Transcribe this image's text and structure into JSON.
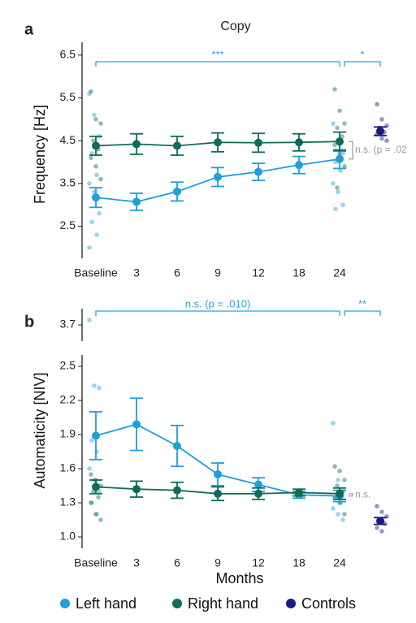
{
  "chart_data": [
    {
      "type": "line",
      "panel_label": "a",
      "title": "Copy",
      "y_label": "Frequency [Hz]",
      "categories": [
        "Baseline",
        "3",
        "6",
        "9",
        "12",
        "18",
        "24",
        null
      ],
      "ylim": [
        1.75,
        6.8
      ],
      "yticks": [
        2.5,
        3.5,
        4.5,
        5.5,
        6.5
      ],
      "annotations": [
        "***",
        "*",
        "n.s. (p = .02"
      ],
      "series": [
        {
          "name": "Left hand",
          "color": "#1f9fd9",
          "values": [
            3.17,
            3.07,
            3.31,
            3.65,
            3.77,
            3.93,
            4.07,
            null
          ],
          "errors": [
            0.23,
            0.2,
            0.22,
            0.22,
            0.2,
            0.2,
            0.22,
            null
          ],
          "raw": [
            [
              5.6,
              5.1,
              4.6,
              4.2,
              3.7,
              3.5,
              3.3,
              2.8,
              2.6,
              2.3,
              2.0
            ],
            null,
            null,
            null,
            null,
            null,
            [
              4.9,
              4.5,
              4.2,
              4.0,
              3.8,
              3.5,
              3.3,
              3.0,
              2.9
            ],
            null
          ]
        },
        {
          "name": "Right hand",
          "color": "#0f6b5a",
          "values": [
            4.38,
            4.42,
            4.38,
            4.46,
            4.45,
            4.46,
            4.48,
            null
          ],
          "errors": [
            0.22,
            0.24,
            0.22,
            0.22,
            0.22,
            0.2,
            0.22,
            null
          ],
          "raw": [
            [
              5.65,
              5.0,
              4.9,
              4.5,
              4.3,
              4.1,
              3.9,
              3.6
            ],
            null,
            null,
            null,
            null,
            null,
            [
              5.7,
              5.2,
              4.9,
              4.8,
              4.6,
              4.4,
              4.2,
              3.9,
              3.4
            ],
            null
          ]
        },
        {
          "name": "Controls",
          "color": "#1a1a80",
          "values": [
            null,
            null,
            null,
            null,
            null,
            null,
            null,
            4.72
          ],
          "errors": [
            null,
            null,
            null,
            null,
            null,
            null,
            null,
            0.1
          ],
          "raw": [
            null,
            null,
            null,
            null,
            null,
            null,
            null,
            [
              5.35,
              5.0,
              4.85,
              4.8,
              4.7,
              4.65,
              4.55,
              4.5
            ]
          ]
        }
      ]
    },
    {
      "type": "line",
      "panel_label": "b",
      "y_label": "Automaticity [NIV]",
      "x_label": "Months",
      "categories": [
        "Baseline",
        "3",
        "6",
        "9",
        "12",
        "18",
        "24",
        null
      ],
      "ylim": [
        0.9,
        2.6
      ],
      "yticks": [
        {
          "value": 1.0,
          "label": "1.0"
        },
        1.3,
        1.6,
        1.9,
        2.2,
        2.5
      ],
      "ylim_upper": [
        3.6,
        3.8
      ],
      "yticks_upper": [
        3.7
      ],
      "annotations": [
        "n.s. (p = .010)",
        "**",
        "n.s."
      ],
      "series": [
        {
          "name": "Left hand",
          "color": "#1f9fd9",
          "values": [
            1.89,
            1.99,
            1.8,
            1.55,
            1.46,
            1.37,
            1.36,
            null
          ],
          "errors": [
            0.21,
            0.23,
            0.18,
            0.1,
            0.06,
            0.03,
            0.05,
            null
          ],
          "raw": [
            [
              3.73,
              2.33,
              2.31,
              1.85,
              1.75,
              1.6,
              1.5,
              1.4,
              1.3,
              1.2
            ],
            null,
            null,
            null,
            null,
            null,
            [
              2.0,
              1.5,
              1.4,
              1.35,
              1.3,
              1.25,
              1.2,
              1.15
            ],
            null
          ]
        },
        {
          "name": "Right hand",
          "color": "#0f6b5a",
          "values": [
            1.44,
            1.42,
            1.41,
            1.38,
            1.38,
            1.39,
            1.38,
            null
          ],
          "errors": [
            0.06,
            0.07,
            0.07,
            0.06,
            0.05,
            0.03,
            0.05,
            null
          ],
          "raw": [
            [
              1.55,
              1.5,
              1.45,
              1.4,
              1.35,
              1.3,
              1.2,
              1.15
            ],
            null,
            null,
            null,
            null,
            null,
            [
              1.62,
              1.58,
              1.5,
              1.45,
              1.4,
              1.35,
              1.3,
              1.2
            ],
            null
          ]
        },
        {
          "name": "Controls",
          "color": "#1a1a80",
          "values": [
            null,
            null,
            null,
            null,
            null,
            null,
            null,
            1.14
          ],
          "errors": [
            null,
            null,
            null,
            null,
            null,
            null,
            null,
            0.03
          ],
          "raw": [
            null,
            null,
            null,
            null,
            null,
            null,
            null,
            [
              1.27,
              1.22,
              1.18,
              1.15,
              1.12,
              1.08,
              1.05
            ]
          ]
        }
      ]
    }
  ]
}
